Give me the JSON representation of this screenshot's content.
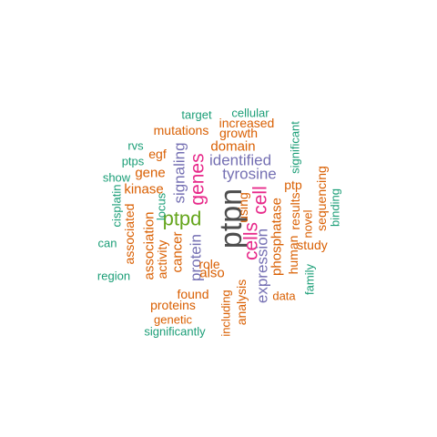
{
  "colors": {
    "background": "#ffffff",
    "teal": "#1b9e77",
    "orange": "#d95f02",
    "purple": "#7570b3",
    "magenta": "#e7298a",
    "green": "#66a61e",
    "dark_gray": "#4d4d4d"
  },
  "words": [
    {
      "text": "ptpn",
      "color": "dark_gray",
      "rank": 1,
      "orientation": "vertical"
    },
    {
      "text": "ptpd",
      "color": "green",
      "rank": 2,
      "orientation": "horizontal"
    },
    {
      "text": "genes",
      "color": "magenta",
      "rank": 3,
      "orientation": "vertical"
    },
    {
      "text": "cells",
      "color": "magenta",
      "rank": 3,
      "orientation": "vertical"
    },
    {
      "text": "cell",
      "color": "magenta",
      "rank": 3,
      "orientation": "vertical"
    },
    {
      "text": "tyrosine",
      "color": "purple",
      "rank": 4,
      "orientation": "horizontal"
    },
    {
      "text": "identified",
      "color": "purple",
      "rank": 4,
      "orientation": "horizontal"
    },
    {
      "text": "protein",
      "color": "purple",
      "rank": 4,
      "orientation": "vertical"
    },
    {
      "text": "signaling",
      "color": "purple",
      "rank": 4,
      "orientation": "vertical"
    },
    {
      "text": "expression",
      "color": "purple",
      "rank": 4,
      "orientation": "vertical"
    },
    {
      "text": "domain",
      "color": "orange",
      "rank": 5,
      "orientation": "horizontal"
    },
    {
      "text": "phosphatase",
      "color": "orange",
      "rank": 5,
      "orientation": "vertical"
    },
    {
      "text": "cancer",
      "color": "orange",
      "rank": 5,
      "orientation": "vertical"
    },
    {
      "text": "kinase",
      "color": "orange",
      "rank": 5,
      "orientation": "horizontal"
    },
    {
      "text": "also",
      "color": "orange",
      "rank": 5,
      "orientation": "horizontal"
    },
    {
      "text": "growth",
      "color": "orange",
      "rank": 5,
      "orientation": "horizontal"
    },
    {
      "text": "increased",
      "color": "orange",
      "rank": 5,
      "orientation": "horizontal"
    },
    {
      "text": "mutations",
      "color": "orange",
      "rank": 5,
      "orientation": "horizontal"
    },
    {
      "text": "association",
      "color": "orange",
      "rank": 5,
      "orientation": "vertical"
    },
    {
      "text": "gene",
      "color": "orange",
      "rank": 5,
      "orientation": "horizontal"
    },
    {
      "text": "found",
      "color": "orange",
      "rank": 5,
      "orientation": "horizontal"
    },
    {
      "text": "proteins",
      "color": "orange",
      "rank": 5,
      "orientation": "horizontal"
    },
    {
      "text": "study",
      "color": "orange",
      "rank": 5,
      "orientation": "horizontal"
    },
    {
      "text": "human",
      "color": "orange",
      "rank": 5,
      "orientation": "vertical"
    },
    {
      "text": "results",
      "color": "orange",
      "rank": 5,
      "orientation": "vertical"
    },
    {
      "text": "ptp",
      "color": "orange",
      "rank": 5,
      "orientation": "horizontal"
    },
    {
      "text": "sequencing",
      "color": "orange",
      "rank": 5,
      "orientation": "vertical"
    },
    {
      "text": "novel",
      "color": "orange",
      "rank": 5,
      "orientation": "vertical"
    },
    {
      "text": "using",
      "color": "orange",
      "rank": 5,
      "orientation": "vertical"
    },
    {
      "text": "analysis",
      "color": "orange",
      "rank": 5,
      "orientation": "vertical"
    },
    {
      "text": "including",
      "color": "orange",
      "rank": 5,
      "orientation": "vertical"
    },
    {
      "text": "role",
      "color": "orange",
      "rank": 5,
      "orientation": "horizontal"
    },
    {
      "text": "activity",
      "color": "orange",
      "rank": 5,
      "orientation": "vertical"
    },
    {
      "text": "associated",
      "color": "orange",
      "rank": 5,
      "orientation": "vertical"
    },
    {
      "text": "egf",
      "color": "orange",
      "rank": 5,
      "orientation": "horizontal"
    },
    {
      "text": "data",
      "color": "orange",
      "rank": 5,
      "orientation": "horizontal"
    },
    {
      "text": "genetic",
      "color": "orange",
      "rank": 5,
      "orientation": "horizontal"
    },
    {
      "text": "target",
      "color": "teal",
      "rank": 6,
      "orientation": "horizontal"
    },
    {
      "text": "cellular",
      "color": "teal",
      "rank": 6,
      "orientation": "horizontal"
    },
    {
      "text": "significant",
      "color": "teal",
      "rank": 6,
      "orientation": "vertical"
    },
    {
      "text": "rvs",
      "color": "teal",
      "rank": 6,
      "orientation": "horizontal"
    },
    {
      "text": "ptps",
      "color": "teal",
      "rank": 6,
      "orientation": "horizontal"
    },
    {
      "text": "show",
      "color": "teal",
      "rank": 6,
      "orientation": "horizontal"
    },
    {
      "text": "cisplatin",
      "color": "teal",
      "rank": 6,
      "orientation": "vertical"
    },
    {
      "text": "locus",
      "color": "teal",
      "rank": 6,
      "orientation": "vertical"
    },
    {
      "text": "can",
      "color": "teal",
      "rank": 6,
      "orientation": "horizontal"
    },
    {
      "text": "region",
      "color": "teal",
      "rank": 6,
      "orientation": "horizontal"
    },
    {
      "text": "binding",
      "color": "teal",
      "rank": 6,
      "orientation": "vertical"
    },
    {
      "text": "family",
      "color": "teal",
      "rank": 6,
      "orientation": "vertical"
    },
    {
      "text": "significantly",
      "color": "teal",
      "rank": 6,
      "orientation": "horizontal"
    }
  ]
}
